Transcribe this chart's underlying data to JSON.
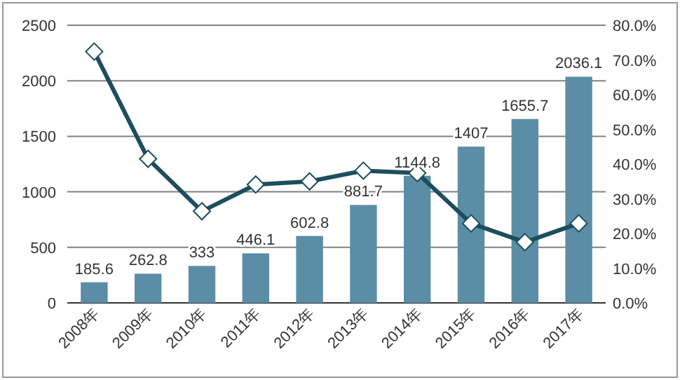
{
  "chart_data": {
    "type": "bar",
    "categories": [
      "2008年",
      "2009年",
      "2010年",
      "2011年",
      "2012年",
      "2013年",
      "2014年",
      "2015年",
      "2016年",
      "2017年"
    ],
    "series": [
      {
        "color": "#5b8ea6",
        "values": [
          185.6,
          262.8,
          333,
          446.1,
          602.8,
          881.7,
          1144.8,
          1407,
          1655.7,
          2036.1
        ],
        "value_labels": [
          "185.6",
          "262.8",
          "333",
          "446.1",
          "602.8",
          "881.7",
          "1144.8",
          "1407",
          "1655.7",
          "2036.1"
        ]
      },
      {
        "type": "line",
        "axis": "y2",
        "color": "#1d4e5e",
        "marker": "diamond",
        "values": [
          72.4,
          41.5,
          26.4,
          34.1,
          35.0,
          38.1,
          37.4,
          22.9,
          17.5,
          22.9
        ]
      }
    ],
    "ylim": [
      0,
      2500
    ],
    "yticks": [
      0,
      500,
      1000,
      1500,
      2000,
      2500
    ],
    "y2lim": [
      0,
      80
    ],
    "y2ticks": [
      {
        "value": 0,
        "label": "0.0%"
      },
      {
        "value": 10,
        "label": "10.0%"
      },
      {
        "value": 20,
        "label": "20.0%"
      },
      {
        "value": 30,
        "label": "30.0%"
      },
      {
        "value": 40,
        "label": "40.0%"
      },
      {
        "value": 50,
        "label": "50.0%"
      },
      {
        "value": 60,
        "label": "60.0%"
      },
      {
        "value": 70,
        "label": "70.0%"
      },
      {
        "value": 80,
        "label": "80.0%"
      }
    ],
    "grid": "y"
  }
}
